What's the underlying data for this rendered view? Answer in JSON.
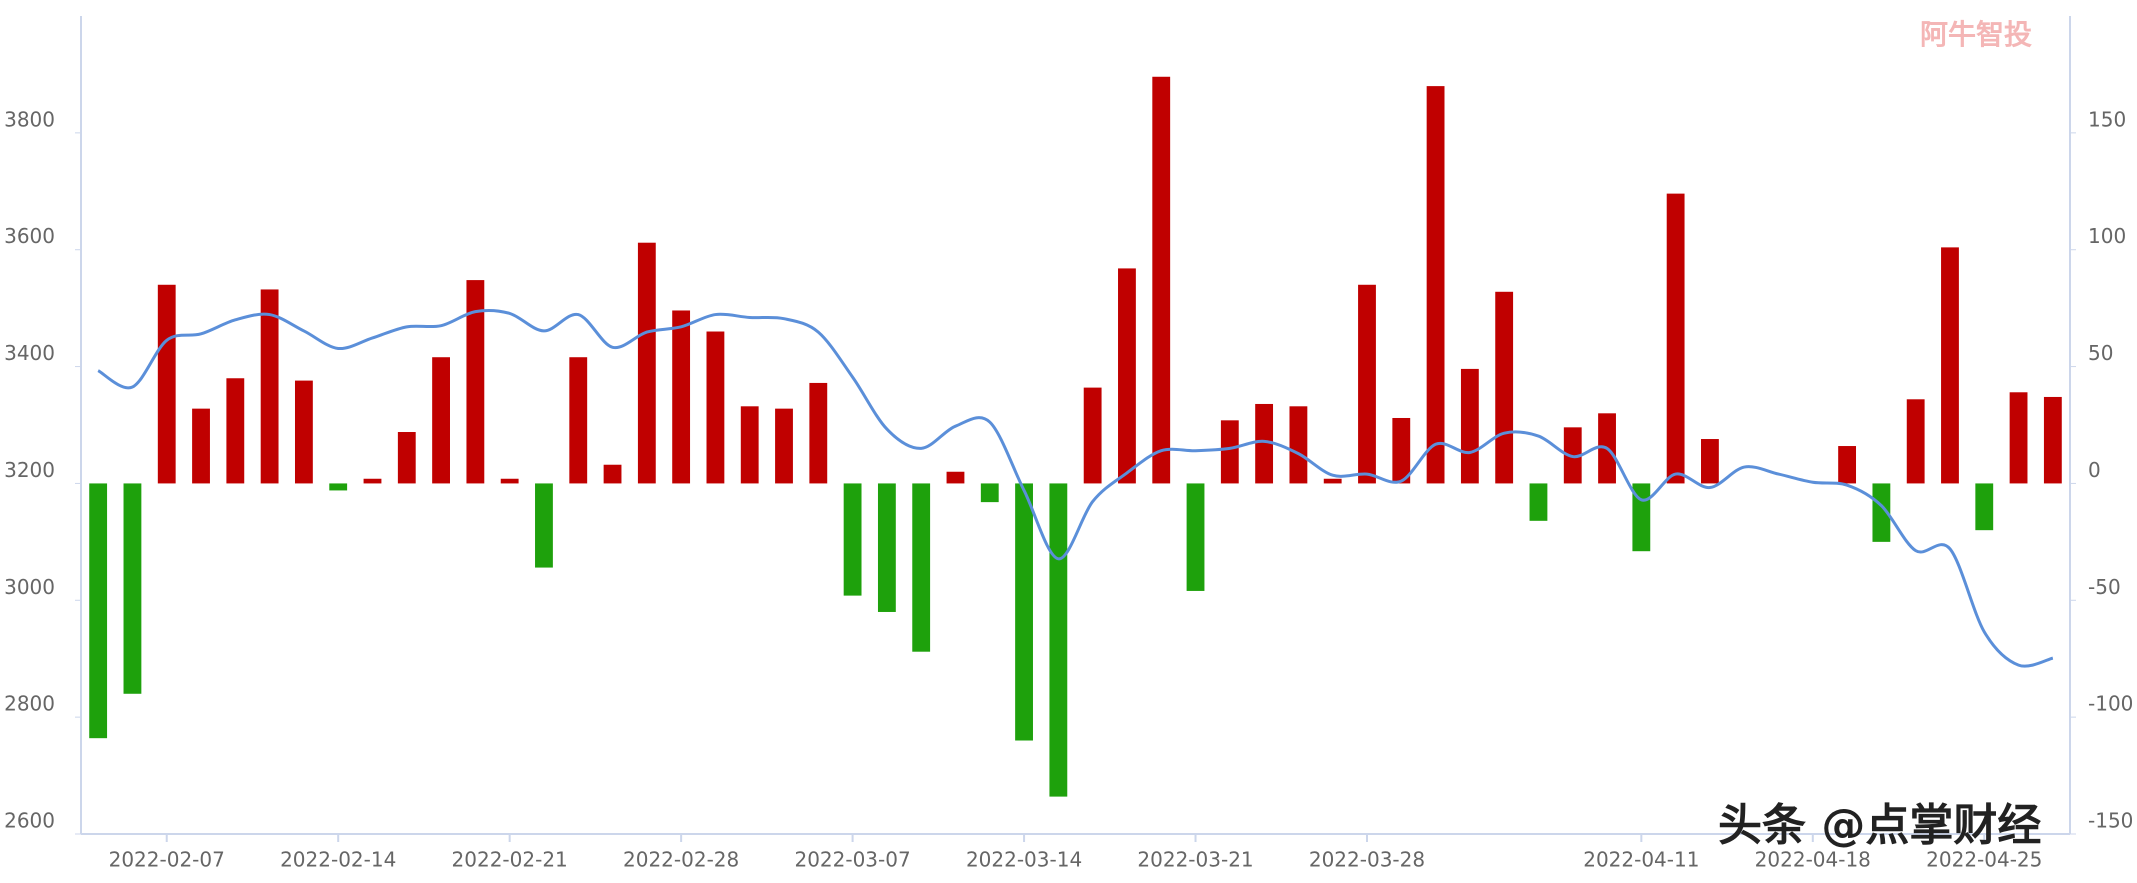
{
  "chart_data": {
    "type": "bar-line",
    "categories": [
      null,
      null,
      "2022-02-07",
      null,
      null,
      null,
      null,
      "2022-02-14",
      null,
      null,
      null,
      null,
      "2022-02-21",
      null,
      null,
      null,
      null,
      "2022-02-28",
      null,
      null,
      null,
      null,
      "2022-03-07",
      null,
      null,
      null,
      null,
      "2022-03-14",
      null,
      null,
      null,
      null,
      "2022-03-21",
      null,
      null,
      null,
      null,
      "2022-03-28",
      null,
      null,
      null,
      null,
      null,
      null,
      null,
      "2022-04-11",
      null,
      null,
      null,
      null,
      "2022-04-18",
      null,
      null,
      null,
      null,
      "2022-04-25",
      null,
      null
    ],
    "series": [
      {
        "type": "bar",
        "axis": "y2",
        "color": "#c00000",
        "negative_color": "#1ea10c",
        "values": [
          -109,
          -90,
          85,
          32,
          45,
          83,
          44,
          -3,
          2,
          22,
          54,
          87,
          2,
          -36,
          54,
          8,
          103,
          74,
          65,
          33,
          32,
          43,
          -48,
          -55,
          -72,
          5,
          -8,
          -110,
          -134,
          41,
          92,
          174,
          -46,
          27,
          34,
          33,
          2,
          85,
          28,
          170,
          49,
          82,
          -16,
          24,
          30,
          -29,
          124,
          19,
          null,
          null,
          null,
          16,
          -25,
          36,
          101,
          -20,
          39,
          37
        ]
      },
      {
        "type": "line",
        "color": "#5b8fd9",
        "values": [
          3393,
          3365,
          3445,
          3456,
          3480,
          3489,
          3461,
          3431,
          3449,
          3468,
          3470,
          3494,
          3491,
          3461,
          3489,
          3433,
          3459,
          3468,
          3489,
          3484,
          3482,
          3459,
          3382,
          3293,
          3260,
          3298,
          3305,
          3188,
          3071,
          3169,
          3218,
          3256,
          3256,
          3260,
          3272,
          3251,
          3214,
          3216,
          3204,
          3267,
          3253,
          3286,
          3281,
          3246,
          3260,
          3172,
          3216,
          3193,
          3228,
          3216,
          3202,
          3197,
          3162,
          3085,
          3088,
          2946,
          2889,
          2901
        ]
      }
    ],
    "ylim": [
      2600,
      4000
    ],
    "yticks": [
      2600,
      2800,
      3000,
      3200,
      3400,
      3600,
      3800
    ],
    "y2lim": [
      -150,
      200
    ],
    "y2ticks": [
      -150,
      -100,
      -50,
      0,
      50,
      100,
      150
    ],
    "annotations": [
      "阿牛智投",
      "头条 @点掌财经"
    ]
  }
}
